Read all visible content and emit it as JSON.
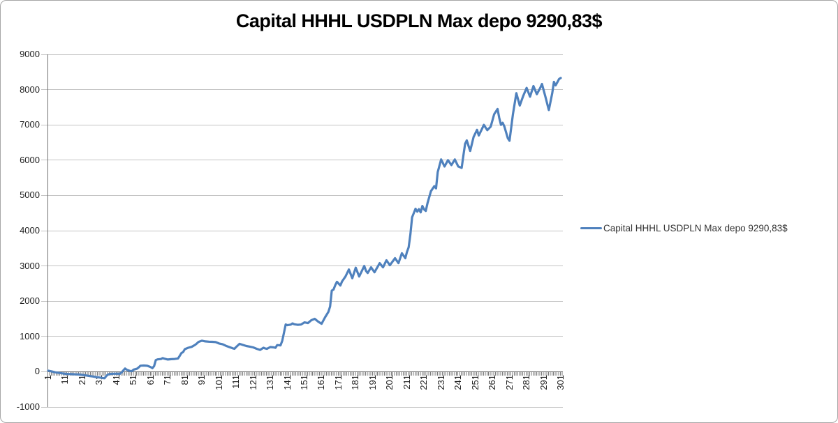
{
  "chart_data": {
    "type": "line",
    "title": "Capital HHHL USDPLN Max depo 9290,83$",
    "legend_label": "Capital HHHL USDPLN Max depo 9290,83$",
    "legend_position": "right",
    "grid": "horizontal-only",
    "xlabel": "",
    "ylabel": "",
    "ylim": [
      -1000,
      9000
    ],
    "y_ticks": [
      9000,
      8000,
      7000,
      6000,
      5000,
      4000,
      3000,
      2000,
      1000,
      0,
      -1000
    ],
    "x_tick_labels": [
      1,
      11,
      21,
      31,
      41,
      51,
      61,
      71,
      81,
      91,
      101,
      111,
      121,
      131,
      141,
      151,
      161,
      171,
      181,
      191,
      201,
      211,
      221,
      231,
      241,
      251,
      261,
      271,
      281,
      291,
      301
    ],
    "x_range": [
      1,
      301
    ],
    "series": [
      {
        "name": "Capital HHHL USDPLN Max depo 9290,83$",
        "color": "#4F81BD",
        "points": [
          [
            1,
            30
          ],
          [
            3,
            10
          ],
          [
            5,
            -15
          ],
          [
            7,
            -30
          ],
          [
            9,
            -45
          ],
          [
            11,
            -60
          ],
          [
            13,
            -65
          ],
          [
            15,
            -70
          ],
          [
            17,
            -75
          ],
          [
            19,
            -80
          ],
          [
            21,
            -90
          ],
          [
            23,
            -105
          ],
          [
            25,
            -120
          ],
          [
            27,
            -135
          ],
          [
            29,
            -150
          ],
          [
            31,
            -165
          ],
          [
            33,
            -180
          ],
          [
            34,
            -185
          ],
          [
            35,
            -120
          ],
          [
            36,
            -80
          ],
          [
            37,
            -65
          ],
          [
            39,
            -58
          ],
          [
            41,
            -55
          ],
          [
            43,
            -60
          ],
          [
            44,
            -20
          ],
          [
            45,
            40
          ],
          [
            46,
            90
          ],
          [
            47,
            55
          ],
          [
            49,
            20
          ],
          [
            50,
            15
          ],
          [
            51,
            60
          ],
          [
            53,
            85
          ],
          [
            54,
            125
          ],
          [
            55,
            170
          ],
          [
            57,
            175
          ],
          [
            59,
            168
          ],
          [
            61,
            130
          ],
          [
            62,
            100
          ],
          [
            63,
            160
          ],
          [
            64,
            330
          ],
          [
            65,
            350
          ],
          [
            67,
            360
          ],
          [
            68,
            385
          ],
          [
            69,
            370
          ],
          [
            71,
            345
          ],
          [
            73,
            355
          ],
          [
            75,
            362
          ],
          [
            77,
            375
          ],
          [
            78,
            450
          ],
          [
            79,
            530
          ],
          [
            80,
            560
          ],
          [
            81,
            640
          ],
          [
            83,
            680
          ],
          [
            85,
            705
          ],
          [
            87,
            760
          ],
          [
            88,
            800
          ],
          [
            89,
            845
          ],
          [
            91,
            880
          ],
          [
            93,
            860
          ],
          [
            95,
            852
          ],
          [
            97,
            848
          ],
          [
            99,
            840
          ],
          [
            101,
            800
          ],
          [
            103,
            780
          ],
          [
            105,
            735
          ],
          [
            107,
            700
          ],
          [
            109,
            665
          ],
          [
            110,
            650
          ],
          [
            111,
            700
          ],
          [
            113,
            790
          ],
          [
            115,
            758
          ],
          [
            117,
            730
          ],
          [
            119,
            712
          ],
          [
            121,
            690
          ],
          [
            123,
            650
          ],
          [
            125,
            618
          ],
          [
            127,
            680
          ],
          [
            128,
            660
          ],
          [
            129,
            648
          ],
          [
            131,
            700
          ],
          [
            133,
            690
          ],
          [
            134,
            678
          ],
          [
            135,
            755
          ],
          [
            137,
            748
          ],
          [
            138,
            880
          ],
          [
            139,
            1100
          ],
          [
            140,
            1340
          ],
          [
            141,
            1320
          ],
          [
            143,
            1335
          ],
          [
            144,
            1370
          ],
          [
            145,
            1345
          ],
          [
            147,
            1330
          ],
          [
            149,
            1338
          ],
          [
            151,
            1400
          ],
          [
            153,
            1380
          ],
          [
            155,
            1460
          ],
          [
            157,
            1500
          ],
          [
            159,
            1420
          ],
          [
            161,
            1360
          ],
          [
            163,
            1540
          ],
          [
            165,
            1700
          ],
          [
            166,
            1850
          ],
          [
            167,
            2300
          ],
          [
            168,
            2330
          ],
          [
            169,
            2450
          ],
          [
            170,
            2550
          ],
          [
            171,
            2500
          ],
          [
            172,
            2445
          ],
          [
            173,
            2560
          ],
          [
            175,
            2700
          ],
          [
            177,
            2900
          ],
          [
            179,
            2650
          ],
          [
            181,
            2950
          ],
          [
            183,
            2700
          ],
          [
            185,
            2900
          ],
          [
            186,
            3000
          ],
          [
            187,
            2860
          ],
          [
            188,
            2800
          ],
          [
            190,
            2960
          ],
          [
            192,
            2820
          ],
          [
            195,
            3080
          ],
          [
            197,
            2960
          ],
          [
            199,
            3160
          ],
          [
            201,
            3020
          ],
          [
            204,
            3220
          ],
          [
            206,
            3080
          ],
          [
            208,
            3360
          ],
          [
            210,
            3220
          ],
          [
            211,
            3400
          ],
          [
            212,
            3530
          ],
          [
            213,
            3900
          ],
          [
            214,
            4380
          ],
          [
            215,
            4500
          ],
          [
            216,
            4620
          ],
          [
            217,
            4540
          ],
          [
            218,
            4610
          ],
          [
            219,
            4520
          ],
          [
            220,
            4700
          ],
          [
            221,
            4600
          ],
          [
            222,
            4560
          ],
          [
            223,
            4780
          ],
          [
            225,
            5120
          ],
          [
            227,
            5260
          ],
          [
            228,
            5200
          ],
          [
            229,
            5660
          ],
          [
            231,
            6020
          ],
          [
            233,
            5820
          ],
          [
            235,
            6000
          ],
          [
            237,
            5860
          ],
          [
            239,
            6020
          ],
          [
            241,
            5820
          ],
          [
            243,
            5780
          ],
          [
            244,
            6120
          ],
          [
            245,
            6460
          ],
          [
            246,
            6560
          ],
          [
            248,
            6260
          ],
          [
            250,
            6660
          ],
          [
            252,
            6860
          ],
          [
            253,
            6700
          ],
          [
            255,
            6900
          ],
          [
            256,
            7000
          ],
          [
            258,
            6850
          ],
          [
            260,
            6950
          ],
          [
            262,
            7300
          ],
          [
            264,
            7450
          ],
          [
            265,
            7200
          ],
          [
            266,
            7000
          ],
          [
            267,
            7060
          ],
          [
            268,
            6950
          ],
          [
            270,
            6620
          ],
          [
            271,
            6550
          ],
          [
            273,
            7300
          ],
          [
            275,
            7900
          ],
          [
            277,
            7550
          ],
          [
            279,
            7820
          ],
          [
            281,
            8050
          ],
          [
            283,
            7800
          ],
          [
            285,
            8100
          ],
          [
            287,
            7870
          ],
          [
            289,
            8050
          ],
          [
            290,
            8160
          ],
          [
            292,
            7800
          ],
          [
            294,
            7420
          ],
          [
            296,
            7900
          ],
          [
            297,
            8220
          ],
          [
            298,
            8120
          ],
          [
            300,
            8300
          ],
          [
            301,
            8330
          ]
        ]
      }
    ]
  },
  "colors": {
    "series_line": "#4F81BD",
    "gridline": "#C3C3C3",
    "axis": "#707070",
    "title_text": "#000000",
    "tick_label_text": "#1F1F1F",
    "legend_text": "#333333",
    "background": "#FFFFFF",
    "border": "#A6A6A6"
  }
}
